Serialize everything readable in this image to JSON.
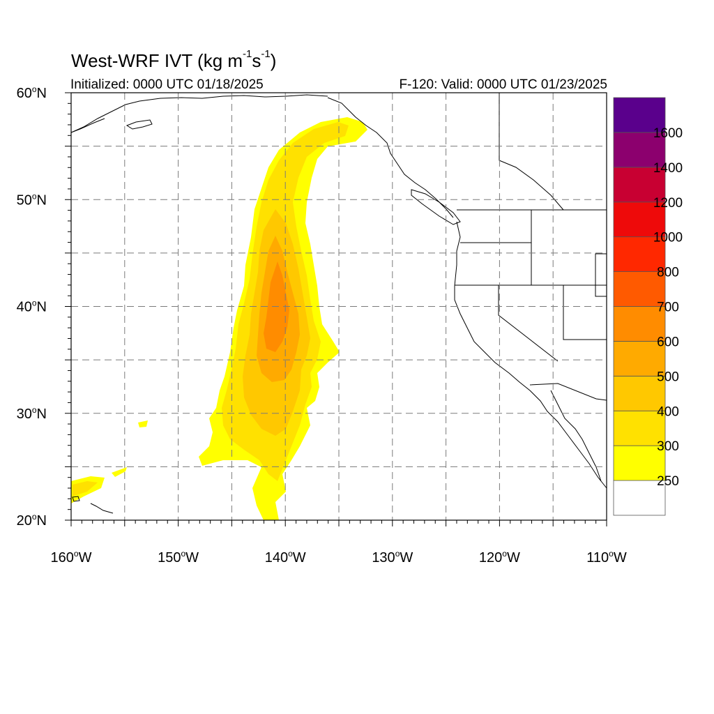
{
  "title": {
    "main": "West-WRF IVT (kg m",
    "sup1": "-1",
    "mid": "s",
    "sup2": "-1",
    "end": ")"
  },
  "initialized": "Initialized: 0000 UTC 01/18/2025",
  "valid": "F-120: Valid: 0000 UTC 01/23/2025",
  "map": {
    "lon_range": [
      -160,
      -110
    ],
    "lat_range": [
      20,
      60
    ],
    "grid": true,
    "grid_style": "dashed",
    "lat_ticks": [
      {
        "value": 20,
        "label": "20",
        "hemi": "N"
      },
      {
        "value": 30,
        "label": "30",
        "hemi": "N"
      },
      {
        "value": 40,
        "label": "40",
        "hemi": "N"
      },
      {
        "value": 50,
        "label": "50",
        "hemi": "N"
      },
      {
        "value": 60,
        "label": "60",
        "hemi": "N"
      }
    ],
    "lon_ticks": [
      {
        "value": -160,
        "label": "160",
        "hemi": "W"
      },
      {
        "value": -150,
        "label": "150",
        "hemi": "W"
      },
      {
        "value": -140,
        "label": "140",
        "hemi": "W"
      },
      {
        "value": -130,
        "label": "130",
        "hemi": "W"
      },
      {
        "value": -120,
        "label": "120",
        "hemi": "W"
      },
      {
        "value": -110,
        "label": "110",
        "hemi": "W"
      }
    ],
    "degree_symbol": "o"
  },
  "colorbar": {
    "levels": [
      "250",
      "300",
      "400",
      "500",
      "600",
      "700",
      "800",
      "1000",
      "1200",
      "1400",
      "1600"
    ],
    "colors": [
      "#ffffff",
      "#ffff00",
      "#ffe100",
      "#ffc800",
      "#ffaa00",
      "#ff8c00",
      "#ff5a00",
      "#ff2800",
      "#ee0a0a",
      "#c80032",
      "#8c006e",
      "#5a008c"
    ]
  },
  "chart_data": {
    "type": "heatmap",
    "title": "West-WRF IVT (kg m-1s-1)",
    "x_range": [
      -160,
      -110
    ],
    "y_range": [
      20,
      60
    ],
    "x_ticks": [
      "160W",
      "150W",
      "140W",
      "130W",
      "120W",
      "110W"
    ],
    "y_ticks": [
      "20N",
      "30N",
      "40N",
      "50N",
      "60N"
    ],
    "color_levels": [
      250,
      300,
      400,
      500,
      600,
      700,
      800,
      1000,
      1200,
      1400,
      1600
    ],
    "plume_max_approx": 700,
    "plume_core_lon_lat": [
      -140,
      40
    ]
  }
}
